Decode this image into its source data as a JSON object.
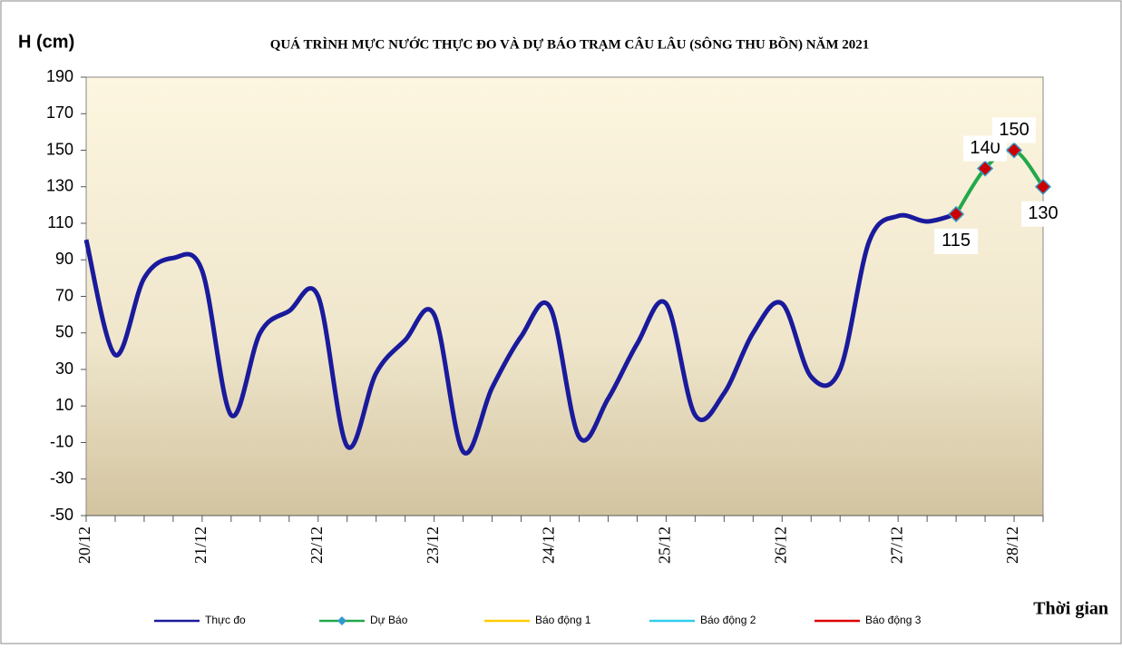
{
  "chart_data": {
    "type": "line",
    "title": "QUÁ TRÌNH MỰC NƯỚC THỰC ĐO VÀ DỰ BÁO TRẠM CÂU LÂU (SÔNG THU BỒN) NĂM  2021",
    "y_label": "H (cm)",
    "x_label": "Thời gian",
    "categories": [
      "20/12",
      null,
      null,
      null,
      "21/12",
      null,
      null,
      null,
      "22/12",
      null,
      null,
      null,
      "23/12",
      null,
      null,
      null,
      "24/12",
      null,
      null,
      null,
      "25/12",
      null,
      null,
      null,
      "26/12",
      null,
      null,
      null,
      "27/12",
      null,
      null,
      null,
      "28/12",
      null
    ],
    "series": [
      {
        "name": "Thực đo",
        "color": "#1a1a9c",
        "values": [
          101,
          38,
          80,
          91,
          84,
          5,
          50,
          62,
          70,
          -12,
          28,
          46,
          60,
          -15,
          20,
          48,
          64,
          -7,
          14,
          44,
          66,
          5,
          17,
          50,
          66,
          26,
          30,
          100,
          114,
          111,
          115,
          null,
          null,
          null
        ]
      },
      {
        "name": "Dự Báo",
        "color": "#22a84a",
        "marker_color": "#cc0000",
        "values": [
          null,
          null,
          null,
          null,
          null,
          null,
          null,
          null,
          null,
          null,
          null,
          null,
          null,
          null,
          null,
          null,
          null,
          null,
          null,
          null,
          null,
          null,
          null,
          null,
          null,
          null,
          null,
          null,
          null,
          null,
          115,
          140,
          150,
          130
        ]
      }
    ],
    "alarms": [
      {
        "name": "Báo động 1",
        "color": "#ffcc00"
      },
      {
        "name": "Báo động 2",
        "color": "#33ccee"
      },
      {
        "name": "Báo động 3",
        "color": "#dd0000"
      }
    ],
    "ylim": [
      -50,
      190
    ],
    "yticks": [
      -50,
      -30,
      -10,
      10,
      30,
      50,
      70,
      90,
      110,
      130,
      150,
      170,
      190
    ]
  }
}
